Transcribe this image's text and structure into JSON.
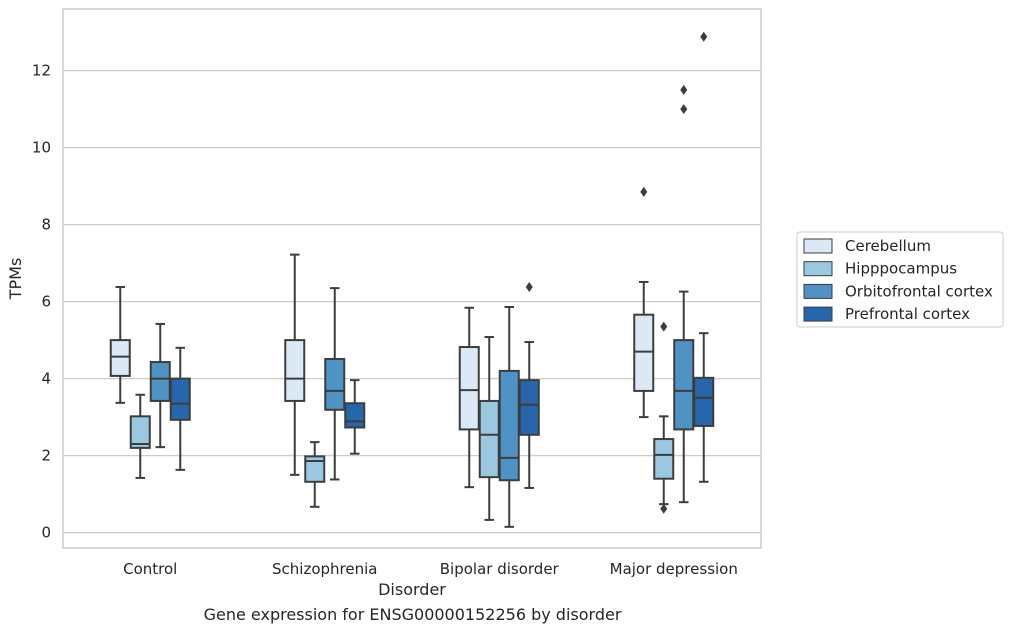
{
  "caption": "Gene expression for ENSG00000152256 by disorder",
  "chart_data": {
    "type": "boxplot",
    "xlabel": "Disorder",
    "ylabel": "TPMs",
    "ylim": [
      -0.4,
      13.6
    ],
    "yticks": [
      0,
      2,
      4,
      6,
      8,
      10,
      12
    ],
    "grid": true,
    "legend_position": "right",
    "categories": [
      "Control",
      "Schizophrenia",
      "Bipolar disorder",
      "Major depression"
    ],
    "series": [
      {
        "name": "Cerebellum",
        "color": "#dbe9f6",
        "boxes": [
          {
            "whislo": 3.37,
            "q1": 4.07,
            "med": 4.57,
            "q3": 5.0,
            "whishi": 6.38,
            "fliers": []
          },
          {
            "whislo": 1.5,
            "q1": 3.42,
            "med": 4.0,
            "q3": 5.0,
            "whishi": 7.22,
            "fliers": []
          },
          {
            "whislo": 1.18,
            "q1": 2.68,
            "med": 3.7,
            "q3": 4.82,
            "whishi": 5.84,
            "fliers": []
          },
          {
            "whislo": 3.0,
            "q1": 3.68,
            "med": 4.7,
            "q3": 5.66,
            "whishi": 6.51,
            "fliers": [
              8.85
            ]
          }
        ]
      },
      {
        "name": "Hipppocampus",
        "color": "#9ac8e0",
        "boxes": [
          {
            "whislo": 1.42,
            "q1": 2.2,
            "med": 2.3,
            "q3": 3.02,
            "whishi": 3.58,
            "fliers": []
          },
          {
            "whislo": 0.67,
            "q1": 1.32,
            "med": 1.86,
            "q3": 1.98,
            "whishi": 2.35,
            "fliers": []
          },
          {
            "whislo": 0.33,
            "q1": 1.44,
            "med": 2.54,
            "q3": 3.42,
            "whishi": 5.08,
            "fliers": []
          },
          {
            "whislo": 0.74,
            "q1": 1.4,
            "med": 2.02,
            "q3": 2.43,
            "whishi": 3.02,
            "fliers": [
              0.62,
              5.35
            ]
          }
        ]
      },
      {
        "name": "Orbitofrontal cortex",
        "color": "#4e93c3",
        "boxes": [
          {
            "whislo": 2.22,
            "q1": 3.42,
            "med": 4.0,
            "q3": 4.43,
            "whishi": 5.42,
            "fliers": []
          },
          {
            "whislo": 1.38,
            "q1": 3.19,
            "med": 3.68,
            "q3": 4.51,
            "whishi": 6.35,
            "fliers": []
          },
          {
            "whislo": 0.15,
            "q1": 1.36,
            "med": 1.94,
            "q3": 4.2,
            "whishi": 5.86,
            "fliers": []
          },
          {
            "whislo": 0.79,
            "q1": 2.68,
            "med": 3.68,
            "q3": 5.0,
            "whishi": 6.26,
            "fliers": [
              11.0,
              11.5
            ]
          }
        ]
      },
      {
        "name": "Prefrontal cortex",
        "color": "#2866ab",
        "boxes": [
          {
            "whislo": 1.63,
            "q1": 2.93,
            "med": 3.35,
            "q3": 4.0,
            "whishi": 4.8,
            "fliers": []
          },
          {
            "whislo": 2.05,
            "q1": 2.73,
            "med": 2.89,
            "q3": 3.36,
            "whishi": 3.96,
            "fliers": []
          },
          {
            "whislo": 1.16,
            "q1": 2.54,
            "med": 3.32,
            "q3": 3.96,
            "whishi": 4.95,
            "fliers": [
              6.38
            ]
          },
          {
            "whislo": 1.32,
            "q1": 2.77,
            "med": 3.5,
            "q3": 4.02,
            "whishi": 5.18,
            "fliers": [
              12.88
            ]
          }
        ]
      }
    ]
  }
}
